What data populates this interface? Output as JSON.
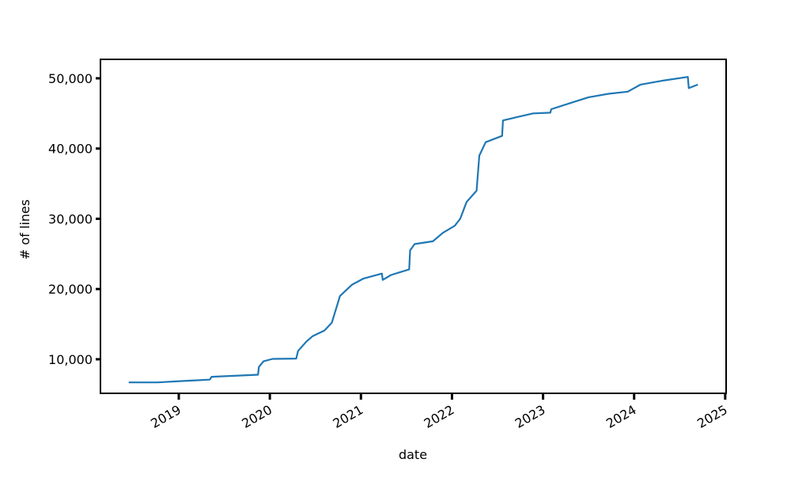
{
  "chart_data": {
    "type": "line",
    "x_label": "date",
    "y_label": "# of lines",
    "x": [
      2018.45,
      2018.77,
      2019.03,
      2019.34,
      2019.36,
      2019.87,
      2019.88,
      2019.93,
      2020.03,
      2020.29,
      2020.31,
      2020.4,
      2020.47,
      2020.6,
      2020.68,
      2020.77,
      2020.9,
      2021.03,
      2021.23,
      2021.24,
      2021.33,
      2021.53,
      2021.54,
      2021.59,
      2021.79,
      2021.9,
      2022.03,
      2022.09,
      2022.16,
      2022.27,
      2022.3,
      2022.37,
      2022.55,
      2022.56,
      2022.72,
      2022.89,
      2023.08,
      2023.09,
      2023.28,
      2023.5,
      2023.72,
      2023.93,
      2024.07,
      2024.33,
      2024.59,
      2024.6,
      2024.7
    ],
    "values": [
      6700,
      6700,
      6900,
      7100,
      7500,
      7800,
      8900,
      9700,
      10050,
      10100,
      11200,
      12500,
      13300,
      14100,
      15200,
      19000,
      20600,
      21500,
      22200,
      21300,
      22000,
      22800,
      25500,
      26400,
      26800,
      28000,
      29000,
      30000,
      32400,
      34000,
      39000,
      40900,
      41800,
      44000,
      44500,
      45000,
      45100,
      45600,
      46400,
      47300,
      47800,
      48100,
      49100,
      49700,
      50200,
      48600,
      49100
    ],
    "color": "#1f77b4",
    "xlim": [
      2018.14,
      2025.01
    ],
    "xticks": [
      2019,
      2020,
      2021,
      2022,
      2023,
      2024,
      2025
    ],
    "ylim": [
      5150,
      52700
    ],
    "yticks": [
      {
        "value": 10000,
        "label": "10,000"
      },
      {
        "value": 20000,
        "label": "20,000"
      },
      {
        "value": 30000,
        "label": "30,000"
      },
      {
        "value": 40000,
        "label": "40,000"
      },
      {
        "value": 50000,
        "label": "50,000"
      }
    ]
  }
}
